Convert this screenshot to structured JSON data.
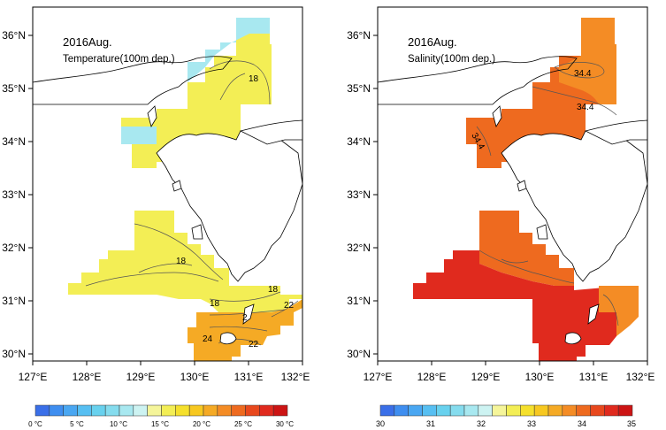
{
  "colors": {
    "temp_scale": [
      "#3a6fe8",
      "#3f8ef0",
      "#4aa7f2",
      "#57bff2",
      "#68d1ee",
      "#85dcee",
      "#a8e8f0",
      "#cdf3f2",
      "#f5f59a",
      "#f3ee55",
      "#f5e02c",
      "#f7c820",
      "#f5aa25",
      "#f48c25",
      "#ee6a1f",
      "#e8481d",
      "#e02a1e",
      "#cc1414"
    ],
    "sal_scale": [
      "#3a6fe8",
      "#3f8ef0",
      "#4aa7f2",
      "#57bff2",
      "#68d1ee",
      "#85dcee",
      "#a8e8f0",
      "#cdf3f2",
      "#f5f59a",
      "#f3ee55",
      "#f5e02c",
      "#f7c820",
      "#f5aa25",
      "#f48c25",
      "#ee6a1f",
      "#e8481d",
      "#e02a1e",
      "#cc1414"
    ],
    "land_outline": "#000000",
    "temp_fill_main": "#f3ee55",
    "temp_fill_warm": "#f5aa25",
    "temp_fill_cool": "#a8e8f0",
    "sal_fill_main": "#ee6a1f",
    "sal_fill_low": "#f48c25",
    "sal_fill_high": "#e02a1e"
  },
  "panels": [
    {
      "id": "temperature",
      "title_line1": "2016Aug.",
      "title_line2": "Temperature(100m dep.)",
      "contour_labels": [
        "18",
        "18",
        "18",
        "18",
        "22",
        "22",
        "24",
        "2"
      ],
      "x_ticks": [
        "127°E",
        "128°E",
        "129°E",
        "130°E",
        "131°E",
        "132°E"
      ],
      "y_ticks": [
        "36°N",
        "35°N",
        "34°N",
        "33°N",
        "32°N",
        "31°N",
        "30°N"
      ],
      "colorbar_labels": [
        "0 °C",
        "5 °C",
        "10 °C",
        "15 °C",
        "20 °C",
        "25 °C",
        "30 °C"
      ]
    },
    {
      "id": "salinity",
      "title_line1": "2016Aug.",
      "title_line2": "Salinity(100m dep.)",
      "contour_labels": [
        "34.4",
        "34.4",
        "34.4"
      ],
      "x_ticks": [
        "127°E",
        "128°E",
        "129°E",
        "130°E",
        "131°E",
        "132°E"
      ],
      "y_ticks": [
        "36°N",
        "35°N",
        "34°N",
        "33°N",
        "32°N",
        "31°N",
        "30°N"
      ],
      "colorbar_labels": [
        "30",
        "31",
        "32",
        "33",
        "34",
        "35"
      ]
    }
  ]
}
